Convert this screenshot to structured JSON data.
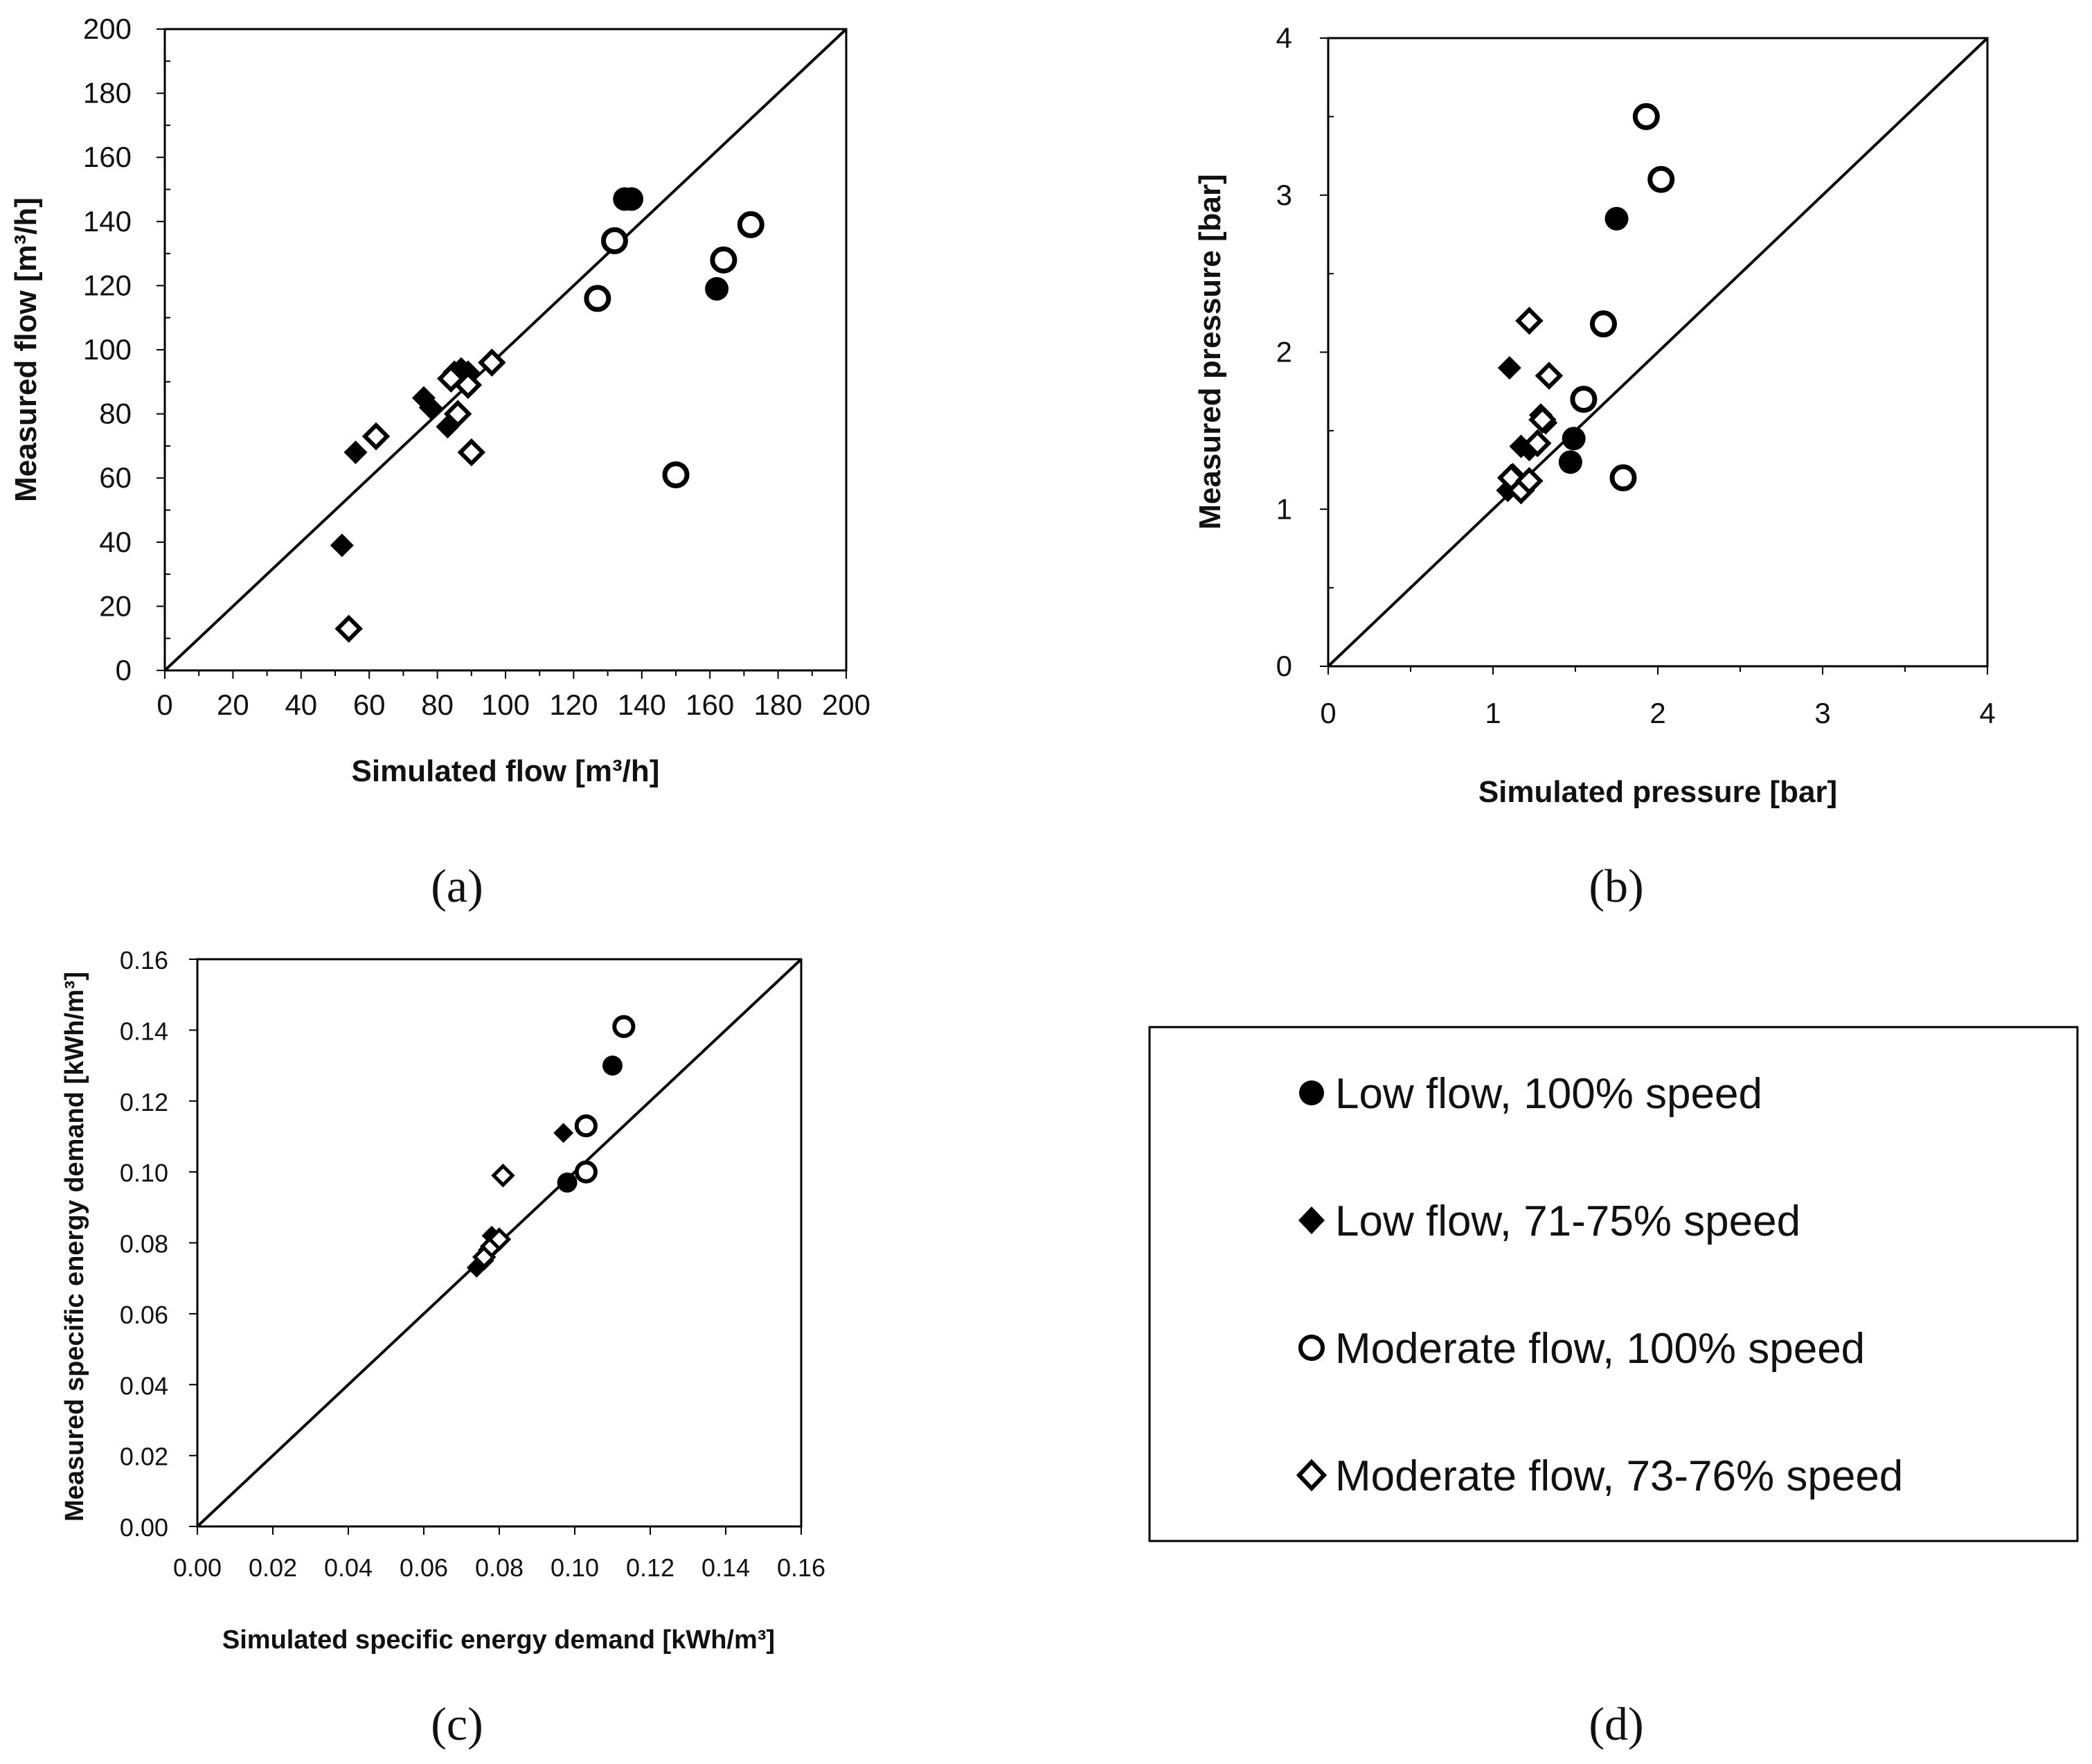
{
  "legend": {
    "entries": [
      {
        "label": "Low flow, 100% speed",
        "marker": "filled-circle-icon"
      },
      {
        "label": "Low flow, 71-75% speed",
        "marker": "filled-diamond-icon"
      },
      {
        "label": "Moderate flow, 100% speed",
        "marker": "open-circle-icon"
      },
      {
        "label": "Moderate flow, 73-76% speed",
        "marker": "open-diamond-icon"
      }
    ]
  },
  "panel_tags": {
    "a": "(a)",
    "b": "(b)",
    "c": "(c)",
    "d": "(d)"
  },
  "chart_data": [
    {
      "id": "a",
      "type": "scatter",
      "title": "",
      "xlabel": "Simulated flow [m³/h]",
      "ylabel": "Measured flow [m³/h]",
      "xlim": [
        0,
        200
      ],
      "ylim": [
        0,
        200
      ],
      "xticks": [
        "0",
        "20",
        "40",
        "60",
        "80",
        "100",
        "120",
        "140",
        "160",
        "180",
        "200"
      ],
      "yticks": [
        "0",
        "20",
        "40",
        "60",
        "80",
        "100",
        "120",
        "140",
        "160",
        "180",
        "200"
      ],
      "reference_line": "y = x",
      "series": [
        {
          "name": "Low flow, 100% speed",
          "marker": "filled-circle",
          "points": [
            [
              135,
              147
            ],
            [
              137,
              147
            ],
            [
              162,
              119
            ]
          ]
        },
        {
          "name": "Low flow, 71-75% speed",
          "marker": "filled-diamond",
          "points": [
            [
              52,
              39
            ],
            [
              56,
              68
            ],
            [
              76,
              85
            ],
            [
              78,
              82
            ],
            [
              83,
              76
            ],
            [
              85,
              93
            ],
            [
              87,
              94
            ],
            [
              89,
              93
            ]
          ]
        },
        {
          "name": "Moderate flow, 100% speed",
          "marker": "open-circle",
          "points": [
            [
              127,
              116
            ],
            [
              132,
              134
            ],
            [
              150,
              61
            ],
            [
              164,
              128
            ],
            [
              172,
              139
            ]
          ]
        },
        {
          "name": "Moderate flow, 73-76% speed",
          "marker": "open-diamond",
          "points": [
            [
              54,
              13
            ],
            [
              62,
              73
            ],
            [
              84,
              91
            ],
            [
              86,
              80
            ],
            [
              89,
              89
            ],
            [
              90,
              68
            ],
            [
              96,
              96
            ]
          ]
        }
      ]
    },
    {
      "id": "b",
      "type": "scatter",
      "title": "",
      "xlabel": "Simulated pressure [bar]",
      "ylabel": "Measured pressure [bar]",
      "xlim": [
        0,
        4
      ],
      "ylim": [
        0,
        4
      ],
      "xticks": [
        "0",
        "1",
        "2",
        "3",
        "4"
      ],
      "yticks": [
        "0",
        "1",
        "2",
        "3",
        "4"
      ],
      "reference_line": "y = x",
      "series": [
        {
          "name": "Low flow, 100% speed",
          "marker": "filled-circle",
          "points": [
            [
              1.47,
              1.3
            ],
            [
              1.49,
              1.45
            ],
            [
              1.75,
              2.85
            ]
          ]
        },
        {
          "name": "Low flow, 71-75% speed",
          "marker": "filled-diamond",
          "points": [
            [
              1.09,
              1.12
            ],
            [
              1.12,
              1.22
            ],
            [
              1.1,
              1.9
            ],
            [
              1.17,
              1.4
            ],
            [
              1.22,
              1.38
            ],
            [
              1.29,
              1.6
            ],
            [
              1.32,
              1.55
            ]
          ]
        },
        {
          "name": "Moderate flow, 100% speed",
          "marker": "open-circle",
          "points": [
            [
              1.55,
              1.7
            ],
            [
              1.67,
              2.18
            ],
            [
              1.79,
              1.2
            ],
            [
              1.93,
              3.5
            ],
            [
              2.02,
              3.1
            ]
          ]
        },
        {
          "name": "Moderate flow, 73-76% speed",
          "marker": "open-diamond",
          "points": [
            [
              1.11,
              1.2
            ],
            [
              1.17,
              1.12
            ],
            [
              1.22,
              1.18
            ],
            [
              1.22,
              2.2
            ],
            [
              1.27,
              1.42
            ],
            [
              1.3,
              1.57
            ],
            [
              1.34,
              1.85
            ]
          ]
        }
      ]
    },
    {
      "id": "c",
      "type": "scatter",
      "title": "",
      "xlabel": "Simulated specific energy demand [kWh/m³]",
      "ylabel": "Measured specific energy demand [kWh/m³]",
      "xlim": [
        0,
        0.16
      ],
      "ylim": [
        0,
        0.16
      ],
      "xticks": [
        "0.00",
        "0.02",
        "0.04",
        "0.06",
        "0.08",
        "0.10",
        "0.12",
        "0.14",
        "0.16"
      ],
      "yticks": [
        "0.00",
        "0.02",
        "0.04",
        "0.06",
        "0.08",
        "0.10",
        "0.12",
        "0.14",
        "0.16"
      ],
      "reference_line": "y = x",
      "series": [
        {
          "name": "Low flow, 100% speed",
          "marker": "filled-circle",
          "points": [
            [
              0.098,
              0.097
            ],
            [
              0.11,
              0.13
            ]
          ]
        },
        {
          "name": "Low flow, 71-75% speed",
          "marker": "filled-diamond",
          "points": [
            [
              0.074,
              0.073
            ],
            [
              0.076,
              0.075
            ],
            [
              0.077,
              0.078
            ],
            [
              0.078,
              0.082
            ],
            [
              0.079,
              0.08
            ],
            [
              0.08,
              0.081
            ],
            [
              0.097,
              0.111
            ]
          ]
        },
        {
          "name": "Moderate flow, 100% speed",
          "marker": "open-circle",
          "points": [
            [
              0.103,
              0.1
            ],
            [
              0.103,
              0.113
            ],
            [
              0.113,
              0.141
            ]
          ]
        },
        {
          "name": "Moderate flow, 73-76% speed",
          "marker": "open-diamond",
          "points": [
            [
              0.076,
              0.076
            ],
            [
              0.078,
              0.079
            ],
            [
              0.08,
              0.081
            ],
            [
              0.081,
              0.099
            ]
          ]
        }
      ]
    }
  ]
}
